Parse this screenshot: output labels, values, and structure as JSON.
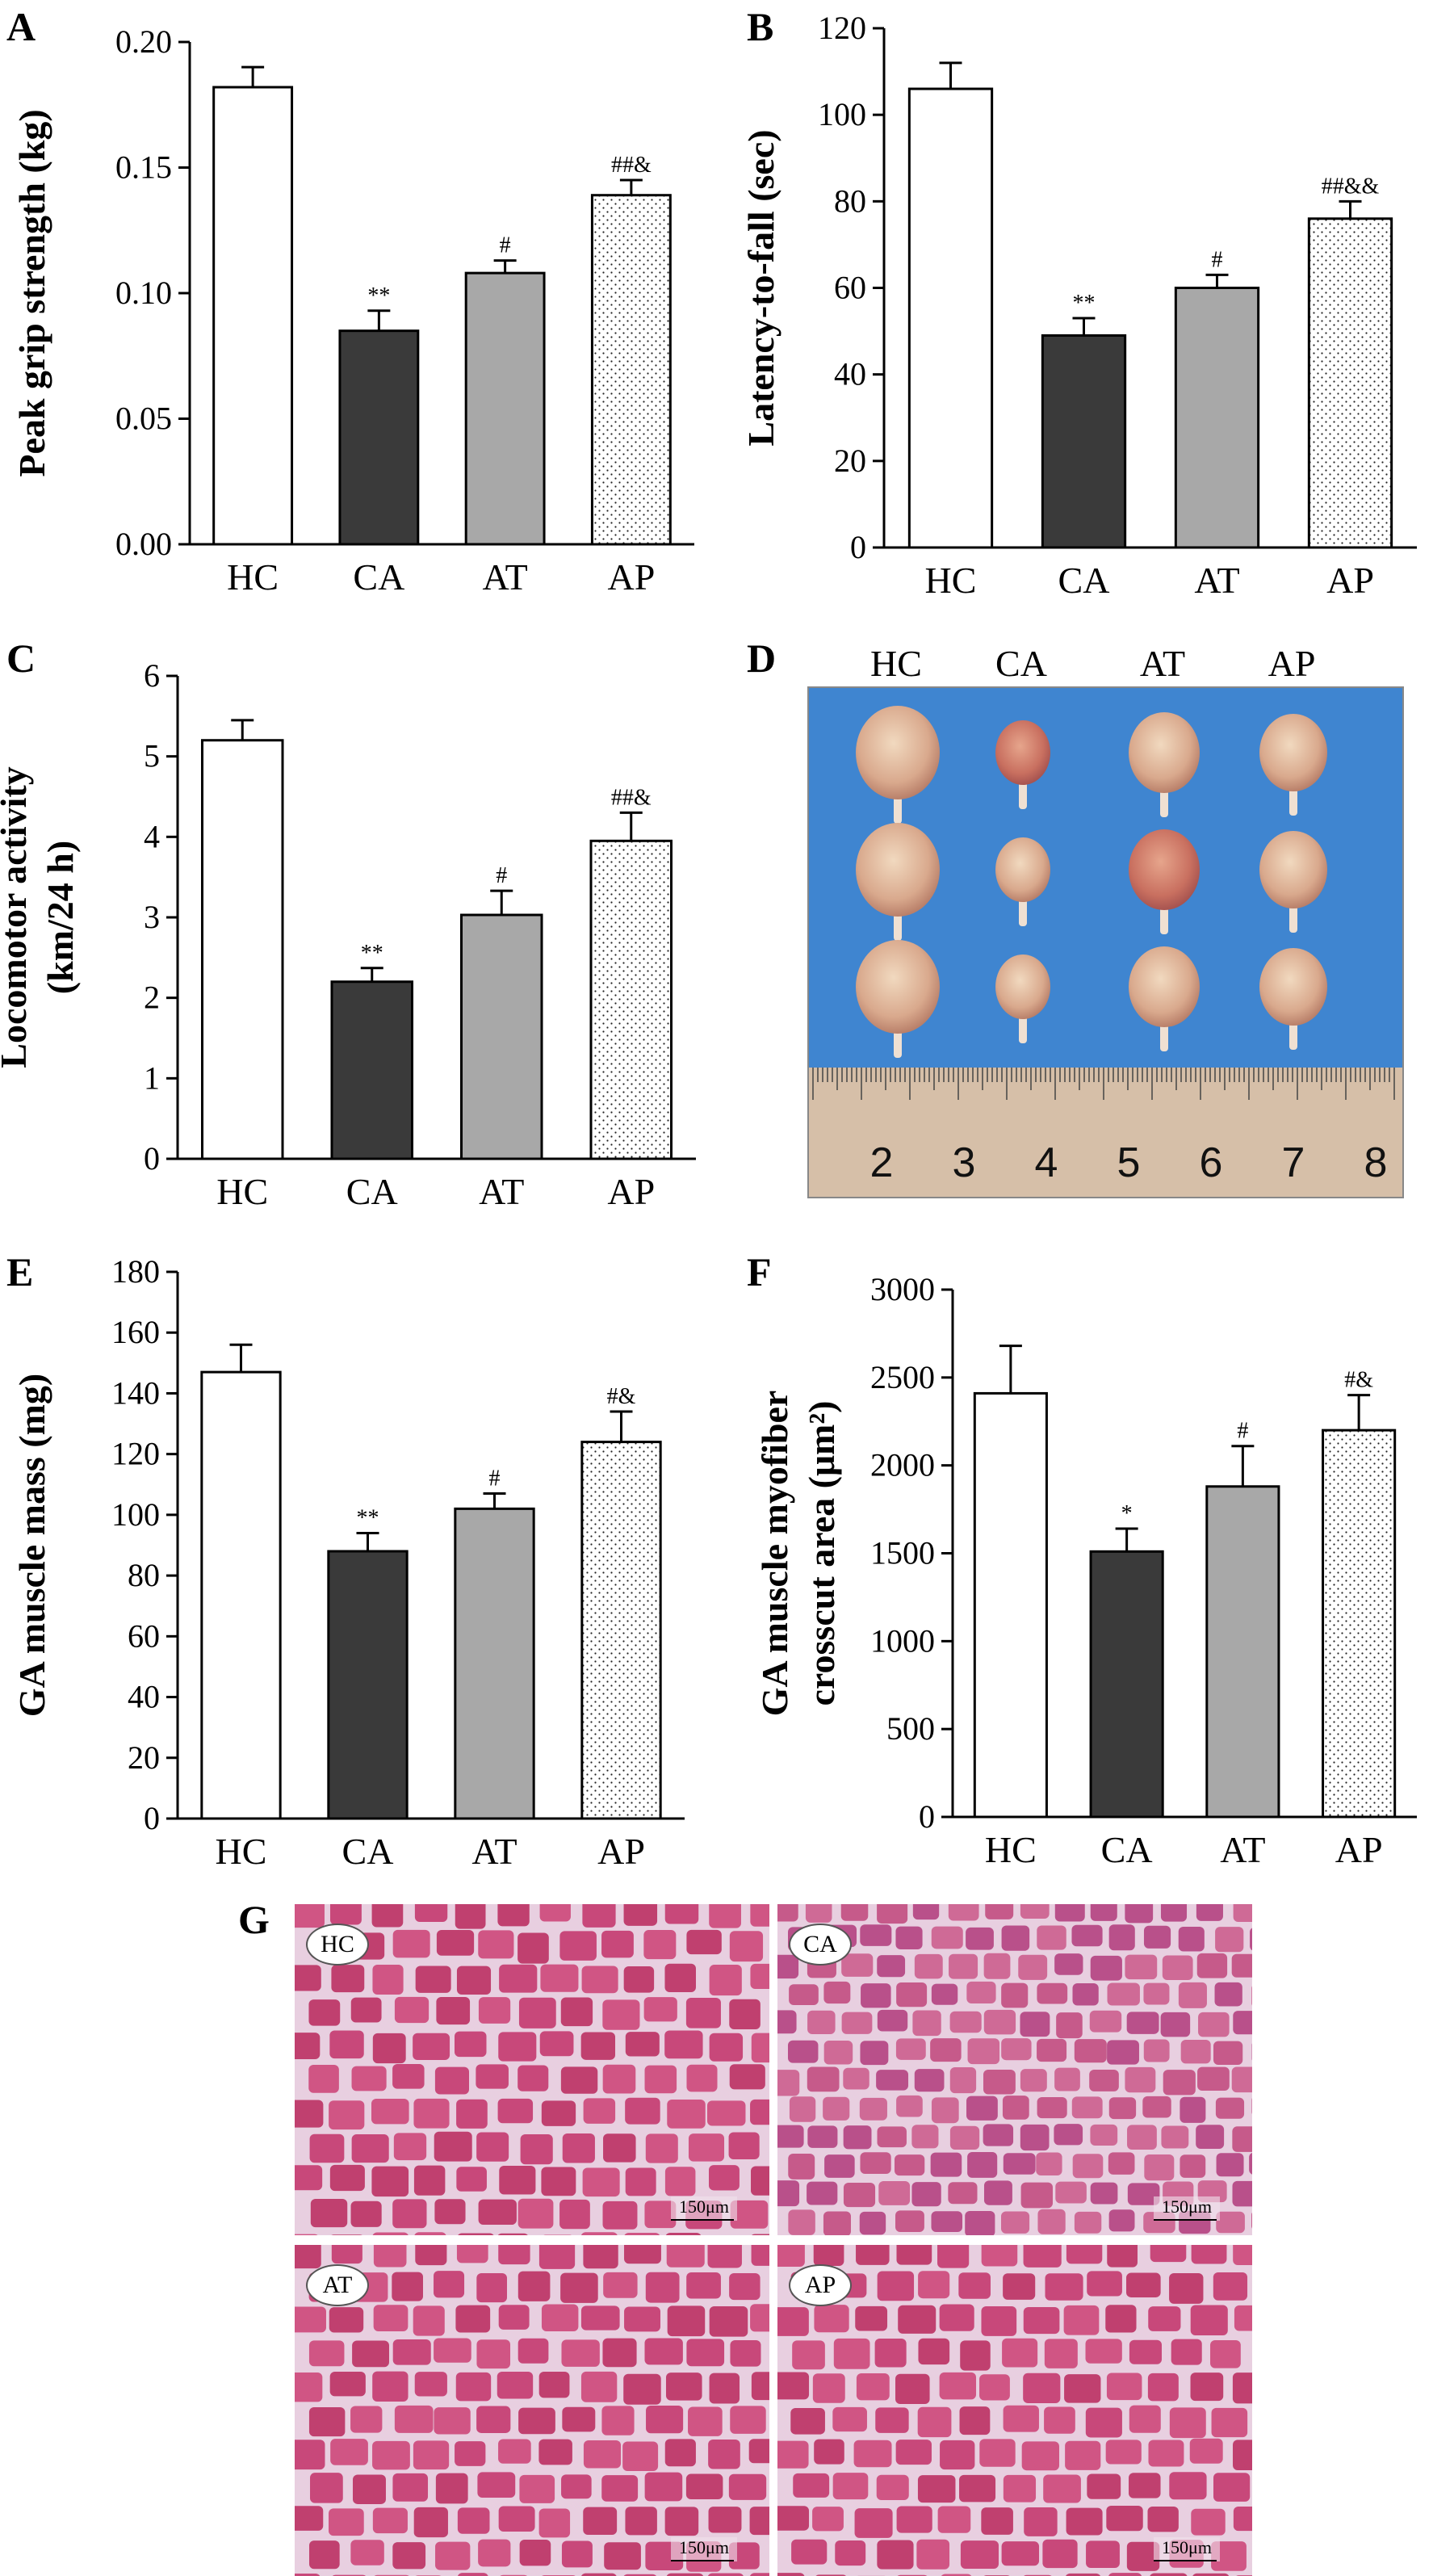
{
  "chart_data": [
    {
      "panel": "A",
      "type": "bar",
      "categories": [
        "HC",
        "CA",
        "AT",
        "AP"
      ],
      "values": [
        0.182,
        0.085,
        0.108,
        0.139
      ],
      "errors": [
        0.008,
        0.008,
        0.005,
        0.006
      ],
      "annotations": [
        "",
        "**",
        "#",
        "##&"
      ],
      "ylabel": "Peak grip strength (kg)",
      "ylim": [
        0,
        0.2
      ],
      "yticks": [
        "0.00",
        "0.05",
        "0.10",
        "0.15",
        "0.20"
      ]
    },
    {
      "panel": "B",
      "type": "bar",
      "categories": [
        "HC",
        "CA",
        "AT",
        "AP"
      ],
      "values": [
        106,
        49,
        60,
        76
      ],
      "errors": [
        6,
        4,
        3,
        4
      ],
      "annotations": [
        "",
        "**",
        "#",
        "##&&"
      ],
      "ylabel": "Latency-to-fall (sec)",
      "ylim": [
        0,
        120
      ],
      "yticks": [
        "0",
        "20",
        "40",
        "60",
        "80",
        "100",
        "120"
      ]
    },
    {
      "panel": "C",
      "type": "bar",
      "categories": [
        "HC",
        "CA",
        "AT",
        "AP"
      ],
      "values": [
        5.2,
        2.2,
        3.03,
        3.95
      ],
      "errors": [
        0.25,
        0.17,
        0.3,
        0.35
      ],
      "annotations": [
        "",
        "**",
        "#",
        "##&"
      ],
      "ylabel": "Locomotor activity",
      "ylabel2": "(km/24 h)",
      "ylim": [
        0,
        6
      ],
      "yticks": [
        "0",
        "1",
        "2",
        "3",
        "4",
        "5",
        "6"
      ]
    },
    {
      "panel": "E",
      "type": "bar",
      "categories": [
        "HC",
        "CA",
        "AT",
        "AP"
      ],
      "values": [
        147,
        88,
        102,
        124
      ],
      "errors": [
        9,
        6,
        5,
        10
      ],
      "annotations": [
        "",
        "**",
        "#",
        "#&"
      ],
      "ylabel": "GA muscle mass (mg)",
      "ylim": [
        0,
        180
      ],
      "yticks": [
        "0",
        "20",
        "40",
        "60",
        "80",
        "100",
        "120",
        "140",
        "160",
        "180"
      ]
    },
    {
      "panel": "F",
      "type": "bar",
      "categories": [
        "HC",
        "CA",
        "AT",
        "AP"
      ],
      "values": [
        2410,
        1510,
        1880,
        2200
      ],
      "errors": [
        270,
        130,
        230,
        200
      ],
      "annotations": [
        "",
        "*",
        "#",
        "#&"
      ],
      "ylabel": "GA muscle myofiber",
      "ylabel2": "crosscut area (μm²)",
      "ylim": [
        0,
        3000
      ],
      "yticks": [
        "0",
        "500",
        "1000",
        "1500",
        "2000",
        "2500",
        "3000"
      ]
    }
  ],
  "panel_letters": {
    "a": "A",
    "b": "B",
    "c": "C",
    "d": "D",
    "e": "E",
    "f": "F",
    "g": "G"
  },
  "photo_d": {
    "columns": [
      "HC",
      "CA",
      "AT",
      "AP"
    ],
    "ruler_numbers": [
      "2",
      "3",
      "4",
      "5",
      "6",
      "7",
      "8"
    ]
  },
  "histology_g": {
    "panels": [
      {
        "tag": "HC",
        "scale": "150μm"
      },
      {
        "tag": "CA",
        "scale": "150μm"
      },
      {
        "tag": "AT",
        "scale": "150μm"
      },
      {
        "tag": "AP",
        "scale": "150μm"
      }
    ]
  },
  "colors": {
    "HC": "#ffffff",
    "CA": "#3a3a3a",
    "AT": "#a8a8a8",
    "AP": "dotted",
    "photo_bg": "#3f85d0",
    "ruler": "#d6bfa8",
    "histo_fiber": "#c84a78",
    "histo_gap": "#e8cfe0"
  }
}
